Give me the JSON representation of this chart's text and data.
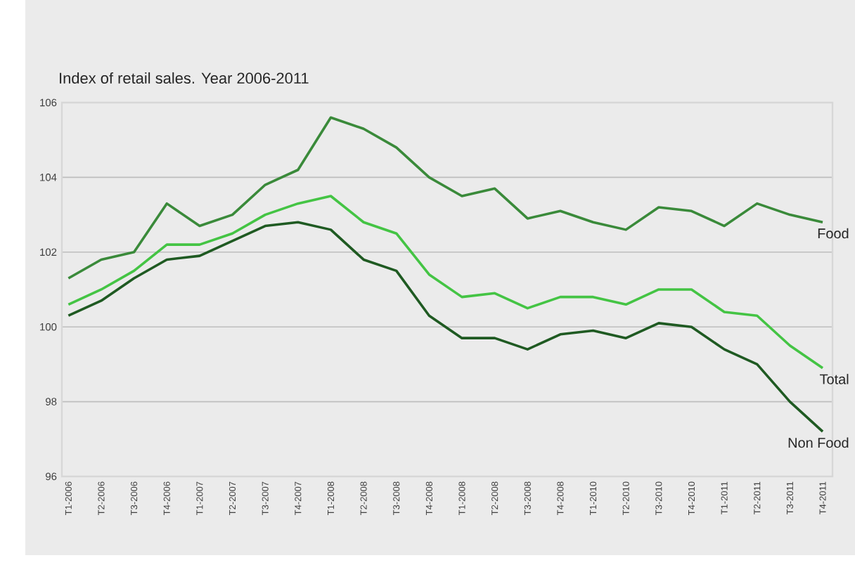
{
  "chart_data": {
    "type": "line",
    "title": "Index of retail sales. Year 2006-2011",
    "categories": [
      "T1-2006",
      "T2-2006",
      "T3-2006",
      "T4-2006",
      "T1-2007",
      "T2-2007",
      "T3-2007",
      "T4-2007",
      "T1-2008",
      "T2-2008",
      "T3-2008",
      "T4-2008",
      "T1-2008",
      "T2-2008",
      "T3-2008",
      "T4-2008",
      "T1-2010",
      "T2-2010",
      "T3-2010",
      "T4-2010",
      "T1-2011",
      "T2-2011",
      "T3-2011",
      "T4-2011"
    ],
    "series": [
      {
        "name": "Food",
        "color": "#3a8a3a",
        "values": [
          101.3,
          101.8,
          102.0,
          103.3,
          102.7,
          103.0,
          103.8,
          104.2,
          105.6,
          105.3,
          104.8,
          104.0,
          103.5,
          103.7,
          102.9,
          103.1,
          102.8,
          102.6,
          103.2,
          103.1,
          102.7,
          103.3,
          103.0,
          102.8
        ]
      },
      {
        "name": "Total",
        "color": "#44c444",
        "values": [
          100.6,
          101.0,
          101.5,
          102.2,
          102.2,
          102.5,
          103.0,
          103.3,
          103.5,
          102.8,
          102.5,
          101.4,
          100.8,
          100.9,
          100.5,
          100.8,
          100.8,
          100.6,
          101.0,
          101.0,
          100.4,
          100.3,
          99.5,
          98.9
        ]
      },
      {
        "name": "Non Food",
        "color": "#1f5a22",
        "values": [
          100.3,
          100.7,
          101.3,
          101.8,
          101.9,
          102.3,
          102.7,
          102.8,
          102.6,
          101.8,
          101.5,
          100.3,
          99.7,
          99.7,
          99.4,
          99.8,
          99.9,
          99.7,
          100.1,
          100.0,
          99.4,
          99.0,
          98.0,
          97.2
        ]
      }
    ],
    "ylim": [
      96,
      106
    ],
    "yticks": [
      96,
      98,
      100,
      102,
      104,
      106
    ],
    "grid": "y",
    "legend": false,
    "marker": "none",
    "line_style": "solid"
  }
}
